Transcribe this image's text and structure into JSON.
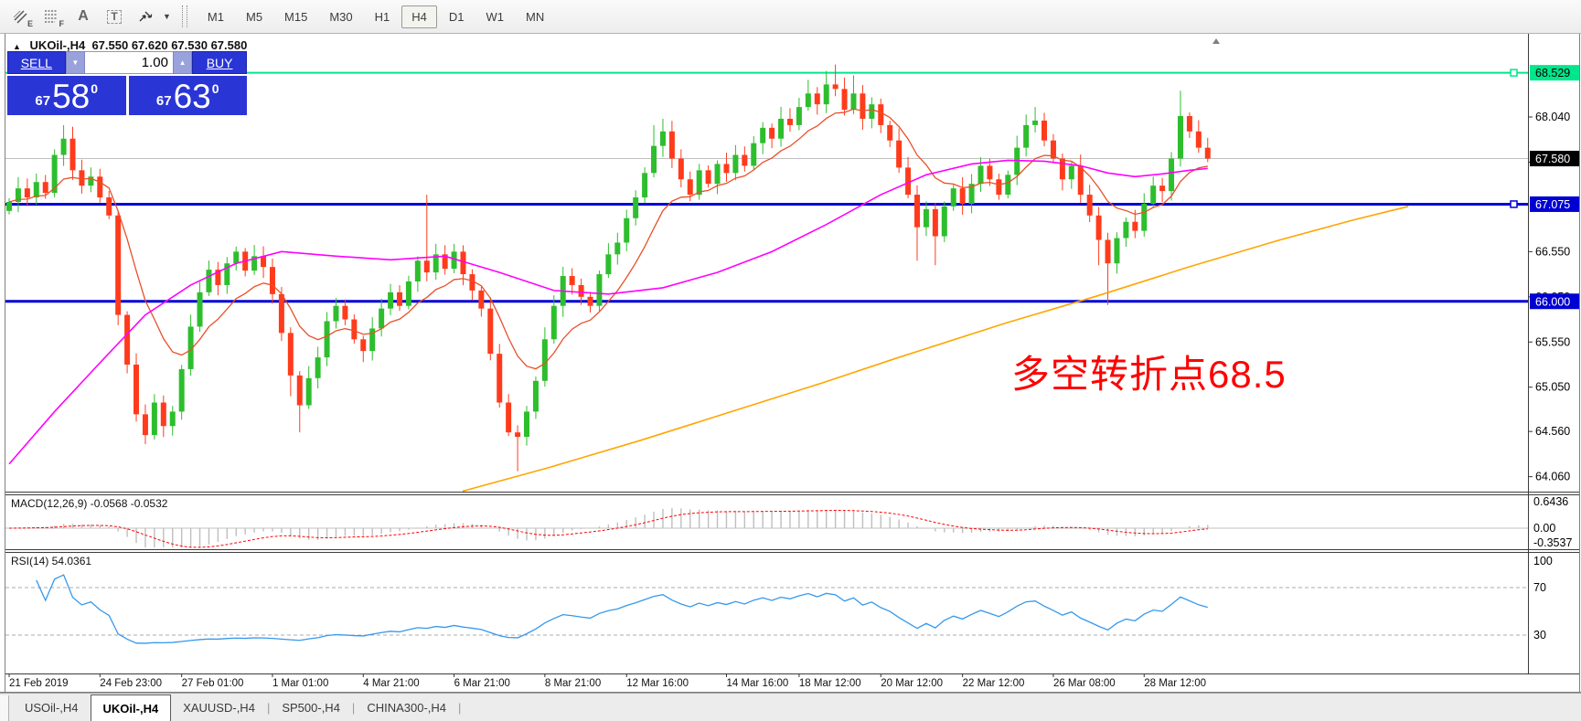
{
  "toolbar": {
    "tools": [
      {
        "name": "equidistant-channel",
        "glyph": "E"
      },
      {
        "name": "fibonacci",
        "glyph": "F"
      },
      {
        "name": "text",
        "glyph": "A"
      },
      {
        "name": "label",
        "glyph": "T"
      },
      {
        "name": "arrows",
        "glyph": "E"
      }
    ],
    "caret": "▼",
    "timeframes": [
      "M1",
      "M5",
      "M15",
      "M30",
      "H1",
      "H4",
      "D1",
      "W1",
      "MN"
    ],
    "active_timeframe": "H4"
  },
  "chart": {
    "marker": "▲",
    "title_symbol": "UKOil-,H4",
    "title_ohlc": "67.550 67.620 67.530 67.580"
  },
  "trade_panel": {
    "sell_label": "SELL",
    "buy_label": "BUY",
    "volume": "1.00",
    "spin_down_glyph": "▼",
    "spin_up_glyph": "▲",
    "sell_price": {
      "small": "67",
      "big": "58",
      "sup": "0"
    },
    "buy_price": {
      "small": "67",
      "big": "63",
      "sup": "0"
    }
  },
  "annotation": {
    "text": "多空转折点68.5"
  },
  "price_axis": {
    "ticks": [
      "68.040",
      "67.540",
      "66.550",
      "66.050",
      "65.550",
      "65.050",
      "64.560",
      "64.060"
    ],
    "badges": [
      {
        "value": "68.529",
        "type": "level-green"
      },
      {
        "value": "67.580",
        "type": "current"
      },
      {
        "value": "67.075",
        "type": "level-blue"
      },
      {
        "value": "66.000",
        "type": "level-blue"
      }
    ]
  },
  "levels": {
    "green": 68.529,
    "current": 67.58,
    "blue1": 67.075,
    "blue2": 66.0
  },
  "macd": {
    "label": "MACD(12,26,9) -0.0568 -0.0532",
    "axis": [
      "0.6436",
      "0.00",
      "-0.3537"
    ]
  },
  "rsi": {
    "label": "RSI(14) 54.0361",
    "axis": [
      "100",
      "70",
      "30"
    ]
  },
  "time_axis": [
    [
      "21 Feb 2019",
      0
    ],
    [
      "24 Feb 23:00",
      10
    ],
    [
      "27 Feb 01:00",
      19
    ],
    [
      "1 Mar 01:00",
      29
    ],
    [
      "4 Mar 21:00",
      39
    ],
    [
      "6 Mar 21:00",
      49
    ],
    [
      "8 Mar 21:00",
      59
    ],
    [
      "12 Mar 16:00",
      68
    ],
    [
      "14 Mar 16:00",
      79
    ],
    [
      "18 Mar 12:00",
      87
    ],
    [
      "20 Mar 12:00",
      96
    ],
    [
      "22 Mar 12:00",
      105
    ],
    [
      "26 Mar 08:00",
      115
    ],
    [
      "28 Mar 12:00",
      125
    ]
  ],
  "tabs": [
    {
      "label": "USOil-,H4",
      "active": false
    },
    {
      "label": "UKOil-,H4",
      "active": true
    },
    {
      "label": "XAUUSD-,H4",
      "active": false
    },
    {
      "label": "SP500-,H4",
      "active": false
    },
    {
      "label": "CHINA300-,H4",
      "active": false
    }
  ],
  "tab_separator": "|",
  "colors": {
    "up": "#2DBE2D",
    "down": "#FF3B1C",
    "ma_fast": "#E8502A",
    "ma_mid": "#FF00FF",
    "ma_slow": "#FFA500",
    "level_green": "#00E68C",
    "level_blue": "#0000D2",
    "current_line": "#C0C0C0",
    "rsi_line": "#3598EC",
    "macd_hist": "#BEBEBE",
    "macd_signal": "#FF0000",
    "annotation": "#FF0000"
  },
  "chart_data": {
    "type": "candlestick",
    "symbol": "UKOil-,H4",
    "timeframe": "H4",
    "ylim": [
      63.9,
      68.9
    ],
    "first_open": 67.0,
    "closes": [
      67.1,
      67.25,
      67.15,
      67.32,
      67.2,
      67.62,
      67.8,
      67.45,
      67.28,
      67.38,
      67.15,
      66.95,
      65.85,
      65.3,
      64.75,
      64.52,
      64.88,
      64.62,
      64.78,
      65.25,
      65.72,
      66.1,
      66.35,
      66.18,
      66.42,
      66.55,
      66.34,
      66.5,
      66.38,
      66.08,
      65.65,
      65.18,
      64.85,
      65.15,
      65.38,
      65.78,
      65.95,
      65.8,
      65.58,
      65.45,
      65.7,
      65.92,
      66.1,
      65.95,
      66.22,
      66.45,
      66.32,
      66.52,
      66.36,
      66.55,
      66.3,
      66.12,
      65.92,
      65.42,
      64.88,
      64.55,
      64.5,
      64.78,
      65.12,
      65.58,
      65.95,
      66.28,
      66.18,
      66.05,
      65.95,
      66.3,
      66.52,
      66.65,
      66.92,
      67.15,
      67.42,
      67.72,
      67.88,
      67.58,
      67.35,
      67.18,
      67.45,
      67.3,
      67.52,
      67.42,
      67.62,
      67.5,
      67.75,
      67.92,
      67.8,
      68.02,
      67.95,
      68.15,
      68.3,
      68.18,
      68.4,
      68.35,
      68.12,
      68.3,
      68.02,
      68.18,
      67.95,
      67.78,
      67.48,
      67.18,
      66.82,
      67.02,
      66.72,
      67.05,
      67.25,
      67.08,
      67.3,
      67.5,
      67.35,
      67.18,
      67.4,
      67.7,
      67.95,
      68.0,
      67.78,
      67.58,
      67.35,
      67.5,
      67.18,
      66.95,
      66.68,
      66.42,
      66.7,
      66.88,
      66.78,
      67.08,
      67.28,
      67.22,
      67.58,
      68.05,
      67.88,
      67.7,
      67.58
    ],
    "wick_high_overrides": {
      "6": 67.95,
      "46": 67.18,
      "71": 67.95,
      "72": 68.02,
      "88": 68.45,
      "90": 68.55,
      "91": 68.62,
      "93": 68.5,
      "113": 68.15,
      "129": 68.33
    },
    "wick_low_overrides": {
      "15": 64.42,
      "31": 64.95,
      "32": 64.55,
      "56": 64.12,
      "100": 66.45,
      "102": 66.4,
      "120": 66.4,
      "121": 65.96
    },
    "ma_magenta_keypoints": [
      [
        0,
        64.2
      ],
      [
        5,
        64.78
      ],
      [
        10,
        65.32
      ],
      [
        15,
        65.85
      ],
      [
        20,
        66.18
      ],
      [
        25,
        66.42
      ],
      [
        30,
        66.55
      ],
      [
        36,
        66.5
      ],
      [
        42,
        66.46
      ],
      [
        48,
        66.5
      ],
      [
        54,
        66.32
      ],
      [
        60,
        66.12
      ],
      [
        66,
        66.08
      ],
      [
        72,
        66.15
      ],
      [
        78,
        66.32
      ],
      [
        84,
        66.55
      ],
      [
        90,
        66.85
      ],
      [
        96,
        67.18
      ],
      [
        101,
        67.4
      ],
      [
        106,
        67.52
      ],
      [
        110,
        67.56
      ],
      [
        114,
        67.55
      ],
      [
        118,
        67.5
      ],
      [
        121,
        67.42
      ],
      [
        124,
        67.38
      ],
      [
        127,
        67.41
      ],
      [
        130,
        67.45
      ],
      [
        132,
        67.47
      ]
    ],
    "ma_orange_keypoints_xprice": [
      [
        506,
        63.9
      ],
      [
        600,
        64.16
      ],
      [
        700,
        64.46
      ],
      [
        800,
        64.78
      ],
      [
        900,
        65.1
      ],
      [
        980,
        65.37
      ],
      [
        1100,
        65.76
      ],
      [
        1200,
        66.06
      ],
      [
        1300,
        66.38
      ],
      [
        1400,
        66.68
      ],
      [
        1480,
        66.9
      ],
      [
        1540,
        67.05
      ]
    ]
  }
}
